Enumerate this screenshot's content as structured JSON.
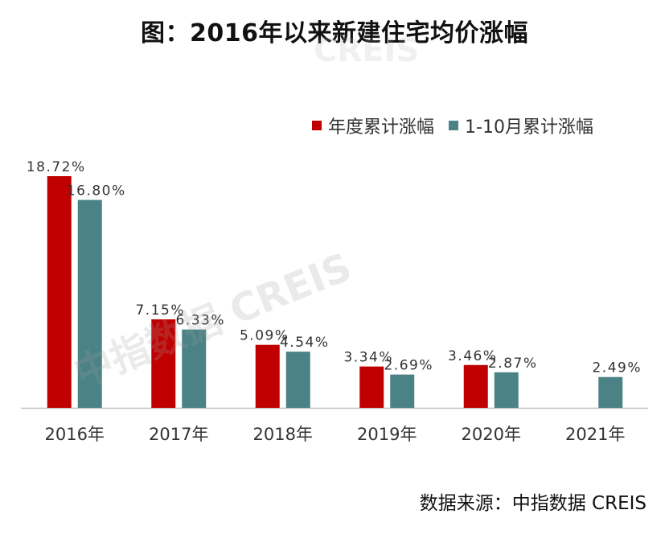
{
  "title": "图：2016年以来新建住宅均价涨幅",
  "source": "数据来源：中指数据 CREIS",
  "watermark": "中指数据 CREIS",
  "watermark_top": "CREIS",
  "colors": {
    "series1": "#c00000",
    "series2": "#4a8286",
    "axis": "#bfbfbf",
    "label": "#333333"
  },
  "chart_data": {
    "type": "bar",
    "categories": [
      "2016年",
      "2017年",
      "2018年",
      "2019年",
      "2020年",
      "2021年"
    ],
    "series": [
      {
        "name": "年度累计涨幅",
        "values": [
          18.72,
          7.15,
          5.09,
          3.34,
          3.46,
          null
        ],
        "labels": [
          "18.72%",
          "7.15%",
          "5.09%",
          "3.34%",
          "3.46%",
          ""
        ]
      },
      {
        "name": "1-10月累计涨幅",
        "values": [
          16.8,
          6.33,
          4.54,
          2.69,
          2.87,
          2.49
        ],
        "labels": [
          "16.80%",
          "6.33%",
          "4.54%",
          "2.69%",
          "2.87%",
          "2.49%"
        ]
      }
    ],
    "ylim": [
      0,
      18.72
    ],
    "grid": false,
    "legend_position": "top-right"
  }
}
